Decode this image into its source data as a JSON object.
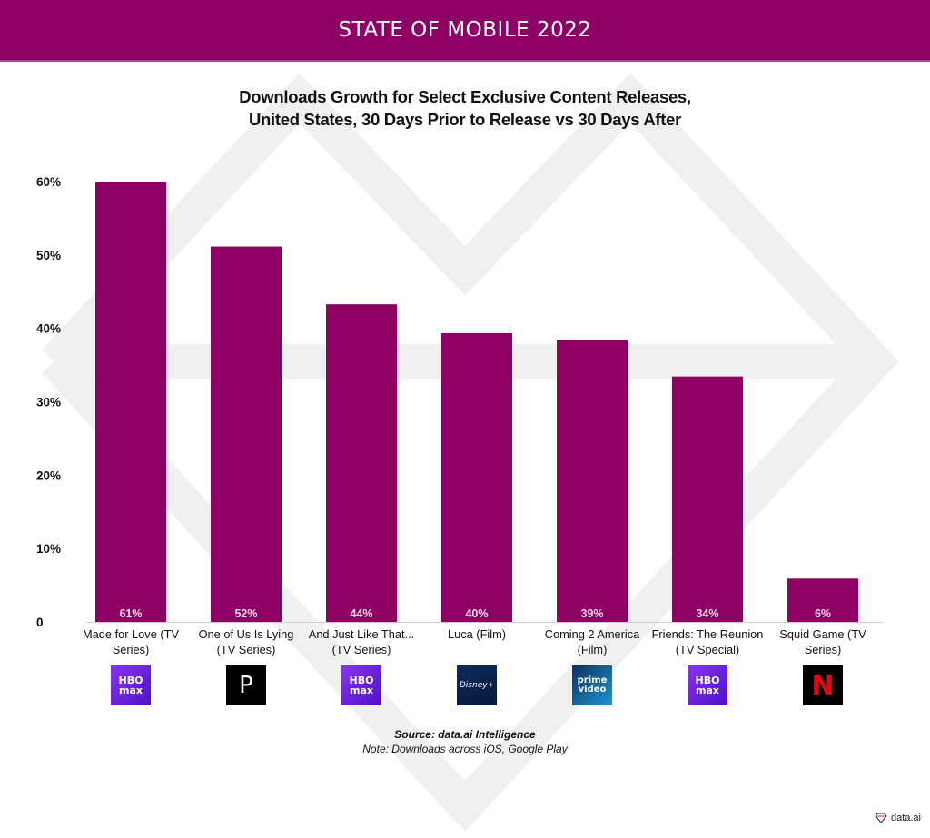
{
  "header": {
    "banner": "STATE OF MOBILE 2022"
  },
  "chart_data": {
    "type": "bar",
    "title": "Downloads Growth for Select Exclusive Content Releases, United States, 30 Days Prior to Release vs 30 Days After",
    "title_lines": [
      "Downloads Growth for Select Exclusive Content Releases,",
      "United States, 30 Days Prior to Release vs 30 Days After"
    ],
    "categories": [
      [
        "Made for Love (TV",
        "Series)"
      ],
      [
        "One of Us Is Lying",
        "(TV Series)"
      ],
      [
        "And Just Like That...",
        "(TV Series)"
      ],
      [
        "Luca (Film)"
      ],
      [
        "Coming 2 America",
        "(Film)"
      ],
      [
        "Friends: The Reunion",
        "(TV Special)"
      ],
      [
        "Squid Game (TV",
        "Series)"
      ]
    ],
    "values": [
      61,
      52,
      44,
      40,
      39,
      34,
      6
    ],
    "value_labels": [
      "61%",
      "52%",
      "44%",
      "40%",
      "39%",
      "34%",
      "6%"
    ],
    "platforms": [
      "HBO Max",
      "Peacock",
      "HBO Max",
      "Disney+",
      "Prime Video",
      "HBO Max",
      "Netflix"
    ],
    "platform_icons": [
      "hbo-max-logo-icon",
      "peacock-logo-icon",
      "hbo-max-logo-icon",
      "disney-plus-logo-icon",
      "prime-video-logo-icon",
      "hbo-max-logo-icon",
      "netflix-logo-icon"
    ],
    "yticks": [
      "0",
      "10%",
      "20%",
      "30%",
      "40%",
      "50%",
      "60%"
    ],
    "ytick_values": [
      0,
      10,
      20,
      30,
      40,
      50,
      60
    ],
    "ylim": [
      0,
      61
    ],
    "xlabel": "",
    "ylabel": "",
    "grid": false,
    "legend": "none",
    "bar_color": "#8f0064"
  },
  "footer": {
    "source": "Source: data.ai Intelligence",
    "note": "Note: Downloads across iOS, Google Play",
    "brand": "data.ai"
  }
}
